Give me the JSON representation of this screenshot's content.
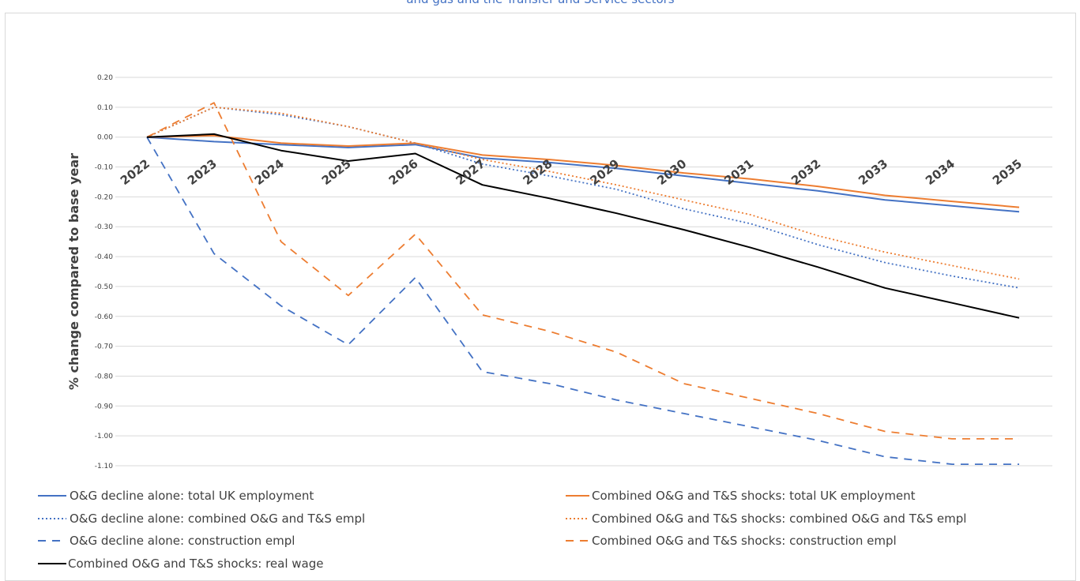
{
  "chart_data": {
    "type": "line",
    "title": "and gas and the Transfer and Service sectors",
    "xlabel": "",
    "ylabel": "% change compared to base year",
    "ylim": [
      -1.1,
      0.2
    ],
    "yticks": [
      0.2,
      0.1,
      0.0,
      -0.1,
      -0.2,
      -0.3,
      -0.4,
      -0.5,
      -0.6,
      -0.7,
      -0.8,
      -0.9,
      -1.0,
      -1.1
    ],
    "ytick_labels": [
      "0.20",
      "0.10",
      "0.00",
      "-0.10",
      "-0.20",
      "-0.30",
      "-0.40",
      "-0.50",
      "-0.60",
      "-0.70",
      "-0.80",
      "-0.90",
      "-1.00",
      "-1.10"
    ],
    "categories": [
      "2022",
      "2023",
      "2024",
      "2025",
      "2026",
      "2027",
      "2028",
      "2029",
      "2030",
      "2031",
      "2032",
      "2033",
      "2034",
      "2035"
    ],
    "grid": true,
    "legend_position": "bottom",
    "series": [
      {
        "name": "O&G decline alone: total UK employment",
        "color": "#4472c4",
        "dash": "solid",
        "values": [
          0.0,
          -0.015,
          -0.025,
          -0.035,
          -0.025,
          -0.07,
          -0.085,
          -0.105,
          -0.13,
          -0.155,
          -0.18,
          -0.21,
          -0.23,
          -0.25
        ]
      },
      {
        "name": "Combined O&G and T&S shocks: total UK employment",
        "color": "#ed7d31",
        "dash": "solid",
        "values": [
          0.0,
          0.005,
          -0.02,
          -0.03,
          -0.02,
          -0.06,
          -0.075,
          -0.095,
          -0.12,
          -0.14,
          -0.165,
          -0.195,
          -0.215,
          -0.235
        ]
      },
      {
        "name": "O&G decline alone: combined O&G and T&S empl",
        "color": "#4472c4",
        "dash": "dot",
        "values": [
          0.0,
          0.1,
          0.075,
          0.035,
          -0.02,
          -0.09,
          -0.13,
          -0.175,
          -0.24,
          -0.29,
          -0.36,
          -0.42,
          -0.465,
          -0.505
        ]
      },
      {
        "name": "Combined O&G and T&S shocks: combined O&G and T&S empl",
        "color": "#ed7d31",
        "dash": "dot",
        "values": [
          0.0,
          0.1,
          0.08,
          0.035,
          -0.02,
          -0.075,
          -0.115,
          -0.16,
          -0.21,
          -0.26,
          -0.33,
          -0.385,
          -0.43,
          -0.475
        ]
      },
      {
        "name": "O&G decline alone: construction empl",
        "color": "#4472c4",
        "dash": "dash",
        "values": [
          0.0,
          -0.39,
          -0.565,
          -0.695,
          -0.47,
          -0.785,
          -0.825,
          -0.88,
          -0.925,
          -0.97,
          -1.015,
          -1.07,
          -1.095,
          -1.095
        ]
      },
      {
        "name": "Combined O&G and T&S shocks: construction empl",
        "color": "#ed7d31",
        "dash": "dash",
        "values": [
          0.0,
          0.115,
          -0.35,
          -0.53,
          -0.325,
          -0.595,
          -0.65,
          -0.72,
          -0.825,
          -0.875,
          -0.925,
          -0.985,
          -1.01,
          -1.01
        ]
      },
      {
        "name": "Combined O&G and T&S shocks: real wage",
        "color": "#000000",
        "dash": "solid",
        "values": [
          0.0,
          0.01,
          -0.045,
          -0.08,
          -0.055,
          -0.16,
          -0.205,
          -0.255,
          -0.31,
          -0.37,
          -0.435,
          -0.505,
          -0.555,
          -0.605
        ]
      }
    ]
  }
}
